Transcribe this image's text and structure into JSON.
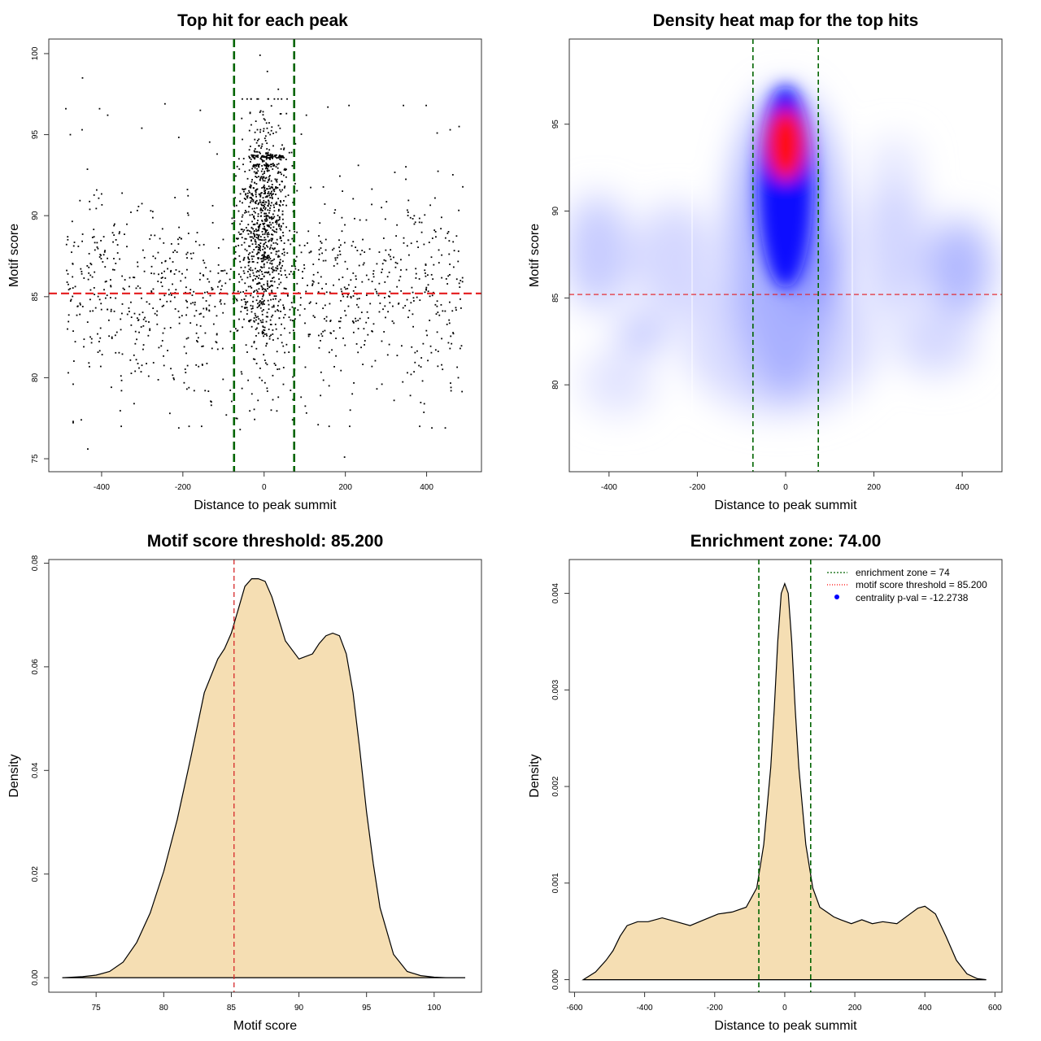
{
  "chart_data": [
    {
      "type": "scatter",
      "title": "Top hit for each peak",
      "xlabel": "Distance to peak summit",
      "ylabel": "Motif score",
      "xlim": [
        -530,
        535
      ],
      "ylim": [
        74.2,
        100.9
      ],
      "xticks": [
        -400,
        -200,
        0,
        200,
        400
      ],
      "yticks": [
        75,
        80,
        85,
        90,
        95,
        100
      ],
      "hline": 85.2,
      "vlines": [
        -74,
        74
      ],
      "points": [
        [
          -447,
          98.5
        ],
        [
          -405,
          96.6
        ],
        [
          -488,
          96.6
        ],
        [
          -385,
          96.2
        ],
        [
          -244,
          96.9
        ],
        [
          -157,
          96.5
        ],
        [
          -448,
          95.3
        ],
        [
          -301,
          95.4
        ],
        [
          -477,
          95.0
        ],
        [
          -10,
          99.9
        ],
        [
          8,
          98.9
        ],
        [
          35,
          97.8
        ],
        [
          -55,
          96.0
        ],
        [
          55,
          96.3
        ],
        [
          104,
          96.2
        ],
        [
          157,
          96.7
        ],
        [
          209,
          96.8
        ],
        [
          343,
          96.8
        ],
        [
          399,
          96.8
        ],
        [
          426,
          95.1
        ],
        [
          458,
          95.3
        ],
        [
          480,
          95.5
        ],
        [
          -450,
          77.4
        ],
        [
          -470,
          77.3
        ],
        [
          -434,
          75.6
        ],
        [
          -232,
          77.8
        ],
        [
          -210,
          76.9
        ],
        [
          -130,
          78.3
        ],
        [
          -93,
          77.7
        ],
        [
          -69,
          77.5
        ],
        [
          -59,
          76.8
        ],
        [
          -15,
          78.6
        ],
        [
          70,
          77.4
        ],
        [
          133,
          77.1
        ],
        [
          198,
          75.1
        ],
        [
          212,
          78.0
        ],
        [
          360,
          78.9
        ],
        [
          383,
          77.0
        ],
        [
          413,
          76.9
        ],
        [
          446,
          76.9
        ],
        [
          -470,
          79.6
        ],
        [
          -351,
          79.2
        ],
        [
          -320,
          78.4
        ],
        [
          -190,
          79.3
        ],
        [
          -172,
          79.2
        ],
        [
          -101,
          79.9
        ],
        [
          -30,
          79.0
        ],
        [
          35,
          78.8
        ],
        [
          91,
          78.8
        ],
        [
          160,
          79.5
        ],
        [
          217,
          79.0
        ],
        [
          290,
          79.6
        ],
        [
          320,
          78.6
        ],
        [
          390,
          79.8
        ],
        [
          460,
          79.4
        ],
        [
          478,
          80.0
        ]
      ]
    },
    {
      "type": "heatmap",
      "title": "Density heat map for the top hits",
      "xlabel": "Distance to peak summit",
      "ylabel": "Motif score",
      "xlim": [
        -490,
        490
      ],
      "ylim": [
        75.0,
        99.9
      ],
      "xticks": [
        -400,
        -200,
        0,
        200,
        400
      ],
      "yticks": [
        80,
        85,
        90,
        95
      ],
      "hline": 85.2,
      "vlines": [
        -74,
        74
      ],
      "color_scale": [
        "#ffffff",
        "#0000ff",
        "#ff0000"
      ],
      "density_peak": [
        0,
        93.3
      ]
    },
    {
      "type": "area",
      "title": "Motif score threshold: 85.200",
      "xlabel": "Motif score",
      "ylabel": "Density",
      "xlim": [
        71.5,
        103.5
      ],
      "ylim": [
        -0.0028,
        0.0807
      ],
      "xticks": [
        75,
        80,
        85,
        90,
        95,
        100
      ],
      "yticks": [
        0.0,
        0.02,
        0.04,
        0.06,
        0.08
      ],
      "xtick_labels": [
        "75",
        "80",
        "85",
        "90",
        "95",
        "100"
      ],
      "ytick_labels": [
        "0.00",
        "0.02",
        "0.04",
        "0.06",
        "0.08"
      ],
      "vline": 85.2,
      "fill": "#f5deb3",
      "x": [
        72.5,
        74.0,
        75.0,
        76.0,
        77.0,
        78.0,
        79.0,
        80.0,
        81.0,
        82.0,
        83.0,
        84.0,
        84.5,
        85.0,
        85.5,
        86.0,
        86.5,
        87.0,
        87.5,
        88.0,
        89.0,
        90.0,
        91.0,
        91.5,
        92.0,
        92.5,
        93.0,
        93.5,
        94.0,
        94.5,
        95.0,
        95.5,
        96.0,
        97.0,
        98.0,
        99.0,
        100.0,
        101.0,
        102.3
      ],
      "y": [
        0.0,
        0.0002,
        0.0005,
        0.0012,
        0.003,
        0.0068,
        0.0125,
        0.0205,
        0.0305,
        0.0425,
        0.055,
        0.0615,
        0.0635,
        0.0665,
        0.071,
        0.0755,
        0.077,
        0.077,
        0.0765,
        0.0735,
        0.065,
        0.0615,
        0.0625,
        0.0645,
        0.066,
        0.0665,
        0.066,
        0.0625,
        0.055,
        0.044,
        0.032,
        0.022,
        0.0135,
        0.0045,
        0.0012,
        0.0004,
        0.0001,
        0.0,
        0.0
      ]
    },
    {
      "type": "area",
      "title": "Enrichment zone: 74.00",
      "xlabel": "Distance to peak summit",
      "ylabel": "Density",
      "xlim": [
        -615,
        620
      ],
      "ylim": [
        -0.00013,
        0.00435
      ],
      "xticks": [
        -600,
        -400,
        -200,
        0,
        200,
        400,
        600
      ],
      "yticks": [
        0.0,
        0.001,
        0.002,
        0.003,
        0.004
      ],
      "xtick_labels": [
        "-600",
        "-400",
        "-200",
        "0",
        "200",
        "400",
        "600"
      ],
      "ytick_labels": [
        "0.000",
        "0.001",
        "0.002",
        "0.003",
        "0.004"
      ],
      "vlines": [
        -74,
        74
      ],
      "fill": "#f5deb3",
      "x": [
        -575,
        -540,
        -510,
        -490,
        -470,
        -450,
        -420,
        -390,
        -350,
        -310,
        -270,
        -230,
        -190,
        -150,
        -110,
        -80,
        -60,
        -40,
        -30,
        -20,
        -10,
        0,
        10,
        20,
        30,
        40,
        60,
        80,
        100,
        120,
        140,
        160,
        190,
        220,
        250,
        280,
        320,
        350,
        380,
        400,
        430,
        460,
        490,
        520,
        550,
        575
      ],
      "y": [
        0.0,
        8e-05,
        0.0002,
        0.0003,
        0.00045,
        0.00056,
        0.0006,
        0.0006,
        0.00064,
        0.0006,
        0.00056,
        0.00062,
        0.00068,
        0.0007,
        0.00075,
        0.00095,
        0.0014,
        0.0022,
        0.0028,
        0.0035,
        0.004,
        0.0041,
        0.004,
        0.0035,
        0.0028,
        0.0022,
        0.0014,
        0.00095,
        0.00075,
        0.0007,
        0.00065,
        0.00062,
        0.00058,
        0.00062,
        0.00058,
        0.0006,
        0.00058,
        0.00066,
        0.00074,
        0.00076,
        0.00068,
        0.00045,
        0.0002,
        6e-05,
        1e-05,
        0.0
      ],
      "legend": [
        {
          "label": "enrichment zone = 74",
          "color": "#006400",
          "style": "dashed"
        },
        {
          "label": "motif score threshold = 85.200",
          "color": "#ff0000",
          "style": "dotted"
        },
        {
          "label": "centrality p-val = -12.2738",
          "color": "#0000ff",
          "style": "point"
        }
      ]
    }
  ]
}
